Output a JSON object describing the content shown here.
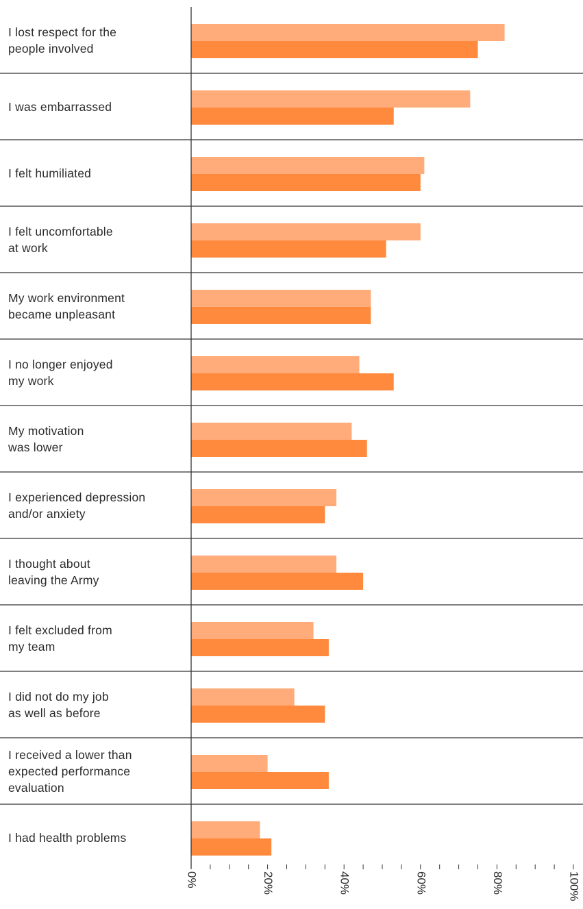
{
  "colors": {
    "series_light": "#FFAB7A",
    "series_dark": "#FF8A3D",
    "axis": "#333333",
    "text": "#2b2b2b"
  },
  "chart_data": {
    "type": "bar",
    "orientation": "horizontal",
    "title": "",
    "xlabel": "",
    "ylabel": "",
    "xlim": [
      0,
      100
    ],
    "ticks": [
      "0%",
      "20%",
      "40%",
      "60%",
      "80%",
      "100%"
    ],
    "categories": [
      [
        "I lost respect for the",
        "people involved"
      ],
      [
        "I was embarrassed"
      ],
      [
        "I felt humiliated"
      ],
      [
        "I felt uncomfortable",
        "at work"
      ],
      [
        "My work environment",
        "became unpleasant"
      ],
      [
        "I no longer enjoyed",
        "my work"
      ],
      [
        "My motivation",
        "was lower"
      ],
      [
        "I experienced depression",
        "and/or anxiety"
      ],
      [
        "I thought about",
        "leaving the Army"
      ],
      [
        "I felt excluded from",
        "my team"
      ],
      [
        "I did not do my job",
        "as well as before"
      ],
      [
        "I received a lower than",
        "expected performance",
        "evaluation"
      ],
      [
        "I had health problems"
      ]
    ],
    "series": [
      {
        "values": [
          82,
          73,
          61,
          60,
          47,
          44,
          42,
          38,
          38,
          32,
          27,
          20,
          18
        ]
      },
      {
        "values": [
          75,
          53,
          60,
          51,
          47,
          53,
          46,
          35,
          45,
          36,
          35,
          36,
          21
        ]
      }
    ],
    "grid": false,
    "legend": "none"
  }
}
